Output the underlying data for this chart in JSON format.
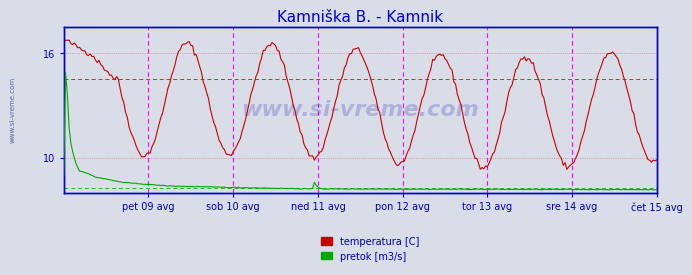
{
  "title": "Kamniška B. - Kamnik",
  "title_color": "#0000cc",
  "background_color": "#d8dde8",
  "plot_bg_color": "#d8dde8",
  "border_color": "#0000cc",
  "xlabel_color": "#0000aa",
  "watermark": "www.si-vreme.com",
  "tick_labels": [
    "pet 09 avg",
    "sob 10 avg",
    "ned 11 avg",
    "pon 12 avg",
    "tor 13 avg",
    "sre 14 avg",
    "čet 15 avg"
  ],
  "tick_positions": [
    48,
    96,
    144,
    192,
    240,
    288,
    336
  ],
  "n_points": 337,
  "temp_color": "#cc0000",
  "flow_color": "#00aa00",
  "vline_color_major": "#ff00ff",
  "temp_min": 8.0,
  "temp_max": 17.5,
  "flow_min": 0.0,
  "flow_max": 20.0,
  "temp_yticks": [
    10,
    16
  ],
  "legend_temp_label": "temperatura [C]",
  "legend_flow_label": "pretok [m3/s]"
}
